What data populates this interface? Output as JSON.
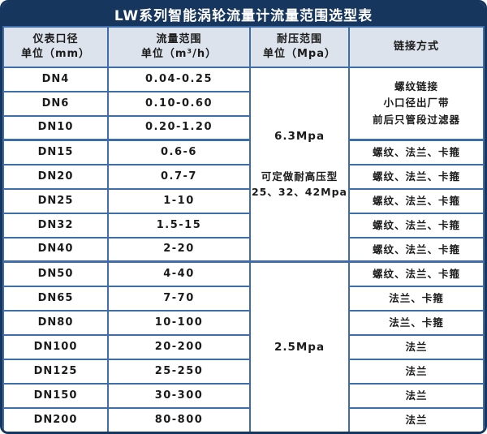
{
  "title": "LW系列智能涡轮流量计流量范围选型表",
  "headers": {
    "diameter_line1": "仪表口径",
    "diameter_line2": "单位（mm）",
    "flow_line1": "流量范围",
    "flow_line2": "单位（m³/h）",
    "pressure_line1": "耐压范围",
    "pressure_line2": "单位（Mpa）",
    "connection": "链接方式"
  },
  "rows": [
    {
      "dn": "DN4",
      "range": "0.04-0.25"
    },
    {
      "dn": "DN6",
      "range": "0.10-0.60"
    },
    {
      "dn": "DN10",
      "range": "0.20-1.20"
    },
    {
      "dn": "DN15",
      "range": "0.6-6",
      "link": "螺纹、法兰、卡箍"
    },
    {
      "dn": "DN20",
      "range": "0.7-7",
      "link": "螺纹、法兰、卡箍"
    },
    {
      "dn": "DN25",
      "range": "1-10",
      "link": "螺纹、法兰、卡箍"
    },
    {
      "dn": "DN32",
      "range": "1.5-15",
      "link": "螺纹、法兰、卡箍"
    },
    {
      "dn": "DN40",
      "range": "2-20",
      "link": "螺纹、法兰、卡箍"
    },
    {
      "dn": "DN50",
      "range": "4-40",
      "link": "螺纹、法兰、卡箍"
    },
    {
      "dn": "DN65",
      "range": "7-70",
      "link": "法兰、卡箍"
    },
    {
      "dn": "DN80",
      "range": "10-100",
      "link": "法兰、卡箍"
    },
    {
      "dn": "DN100",
      "range": "20-200",
      "link": "法兰"
    },
    {
      "dn": "DN125",
      "range": "25-250",
      "link": "法兰"
    },
    {
      "dn": "DN150",
      "range": "30-300",
      "link": "法兰"
    },
    {
      "dn": "DN200",
      "range": "80-800",
      "link": "法兰"
    }
  ],
  "pressure_sections": {
    "high": {
      "value": "6.3Mpa",
      "note_line1": "可定做耐高压型",
      "note_line2": "25、32、42Mpa"
    },
    "low": {
      "value": "2.5Mpa"
    }
  },
  "connection_merged_small_bore": {
    "line1": "螺纹链接",
    "line2": "小口径出厂带",
    "line3": "前后只管段过滤器"
  },
  "colors": {
    "title_bar": "#16365d",
    "frame_border": "#16365d",
    "header_bg": "#dde3ed",
    "grid_border": "#3f6da8",
    "body_bg": "#ffffff",
    "title_text": "#ffffff",
    "body_text": "#1b1b1b"
  }
}
